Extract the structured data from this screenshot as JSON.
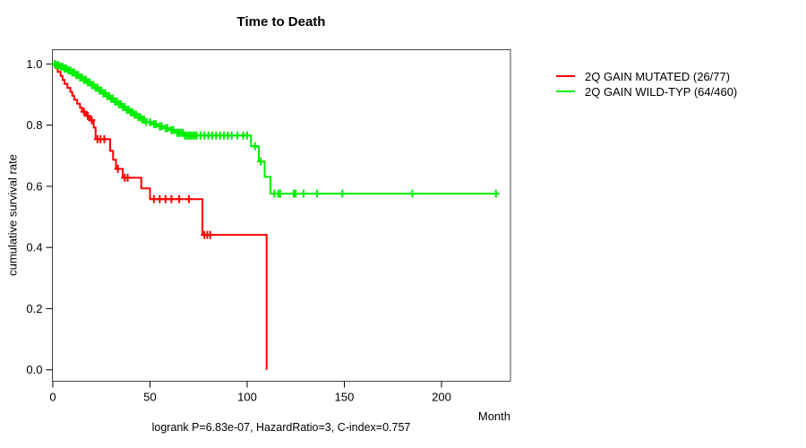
{
  "chart_data": {
    "type": "line",
    "subtype": "kaplan-meier-step",
    "title": "Time to Death",
    "xlabel": "Month",
    "ylabel": "cumulative survival rate",
    "annotation": "logrank P=6.83e-07, HazardRatio=3, C-index=0.757",
    "xticks": [
      0,
      50,
      100,
      150,
      200
    ],
    "yticks": [
      "0.0",
      "0.2",
      "0.4",
      "0.6",
      "0.8",
      "1.0"
    ],
    "xlim": [
      0,
      235
    ],
    "ylim": [
      0.0,
      1.0
    ],
    "grid": false,
    "legend_position": "right-outside",
    "frame_color": "#444444",
    "series": [
      {
        "name": "2Q GAIN MUTATED (26/77)",
        "color": "#ff0000",
        "steps": [
          [
            0,
            1.0
          ],
          [
            1.5,
            0.987
          ],
          [
            2.5,
            0.974
          ],
          [
            4,
            0.961
          ],
          [
            5,
            0.948
          ],
          [
            6,
            0.935
          ],
          [
            7.5,
            0.922
          ],
          [
            9,
            0.909
          ],
          [
            10,
            0.896
          ],
          [
            11,
            0.883
          ],
          [
            12.5,
            0.87
          ],
          [
            14,
            0.857
          ],
          [
            15,
            0.844
          ],
          [
            17,
            0.83
          ],
          [
            19,
            0.816
          ],
          [
            21,
            0.792
          ],
          [
            22,
            0.754
          ],
          [
            29.5,
            0.716
          ],
          [
            31,
            0.687
          ],
          [
            32.5,
            0.657
          ],
          [
            36,
            0.628
          ],
          [
            45.5,
            0.593
          ],
          [
            50,
            0.558
          ],
          [
            77,
            0.441
          ],
          [
            110,
            0.0
          ]
        ],
        "censor_months": [
          16,
          18,
          20,
          23,
          24.5,
          26.5,
          33.5,
          37,
          38.5,
          52,
          55,
          58,
          61,
          65,
          70,
          78,
          79.5,
          81
        ],
        "end_month": 110
      },
      {
        "name": "2Q GAIN WILD-TYP (64/460)",
        "color": "#00ee00",
        "steps": [
          [
            0,
            1.0
          ],
          [
            2,
            0.996
          ],
          [
            4,
            0.991
          ],
          [
            6,
            0.985
          ],
          [
            8,
            0.979
          ],
          [
            10,
            0.972
          ],
          [
            12,
            0.964
          ],
          [
            14,
            0.956
          ],
          [
            16,
            0.948
          ],
          [
            18,
            0.94
          ],
          [
            20,
            0.931
          ],
          [
            22,
            0.922
          ],
          [
            24,
            0.913
          ],
          [
            26,
            0.904
          ],
          [
            28,
            0.895
          ],
          [
            30,
            0.886
          ],
          [
            32,
            0.877
          ],
          [
            34,
            0.868
          ],
          [
            36,
            0.859
          ],
          [
            38,
            0.85
          ],
          [
            40,
            0.842
          ],
          [
            42,
            0.834
          ],
          [
            44,
            0.826
          ],
          [
            46,
            0.818
          ],
          [
            48,
            0.81
          ],
          [
            51,
            0.803
          ],
          [
            54,
            0.796
          ],
          [
            57,
            0.79
          ],
          [
            60,
            0.784
          ],
          [
            63,
            0.775
          ],
          [
            68,
            0.766
          ],
          [
            102,
            0.731
          ],
          [
            106,
            0.681
          ],
          [
            109,
            0.631
          ],
          [
            112,
            0.576
          ]
        ],
        "censor_months": [
          1,
          2,
          3,
          4,
          5,
          6,
          7,
          8,
          9,
          10,
          11,
          12,
          13,
          14,
          15,
          16,
          17,
          18,
          19,
          20,
          21,
          22,
          23,
          24,
          25,
          26,
          27,
          28,
          29,
          30,
          31,
          32,
          33,
          34,
          35,
          36,
          37,
          38,
          39,
          40,
          41,
          42,
          43,
          44,
          45,
          46,
          47,
          48,
          50,
          52,
          53,
          55,
          56,
          58,
          59,
          61,
          62,
          64,
          65,
          66,
          67,
          68,
          69,
          70,
          71,
          72,
          73,
          74,
          76,
          78,
          80,
          82,
          84,
          86,
          88,
          90,
          92,
          95,
          98,
          100,
          104,
          107,
          114,
          116,
          117,
          124,
          125,
          129,
          136,
          149,
          185,
          228
        ],
        "end_month": 228
      }
    ]
  }
}
